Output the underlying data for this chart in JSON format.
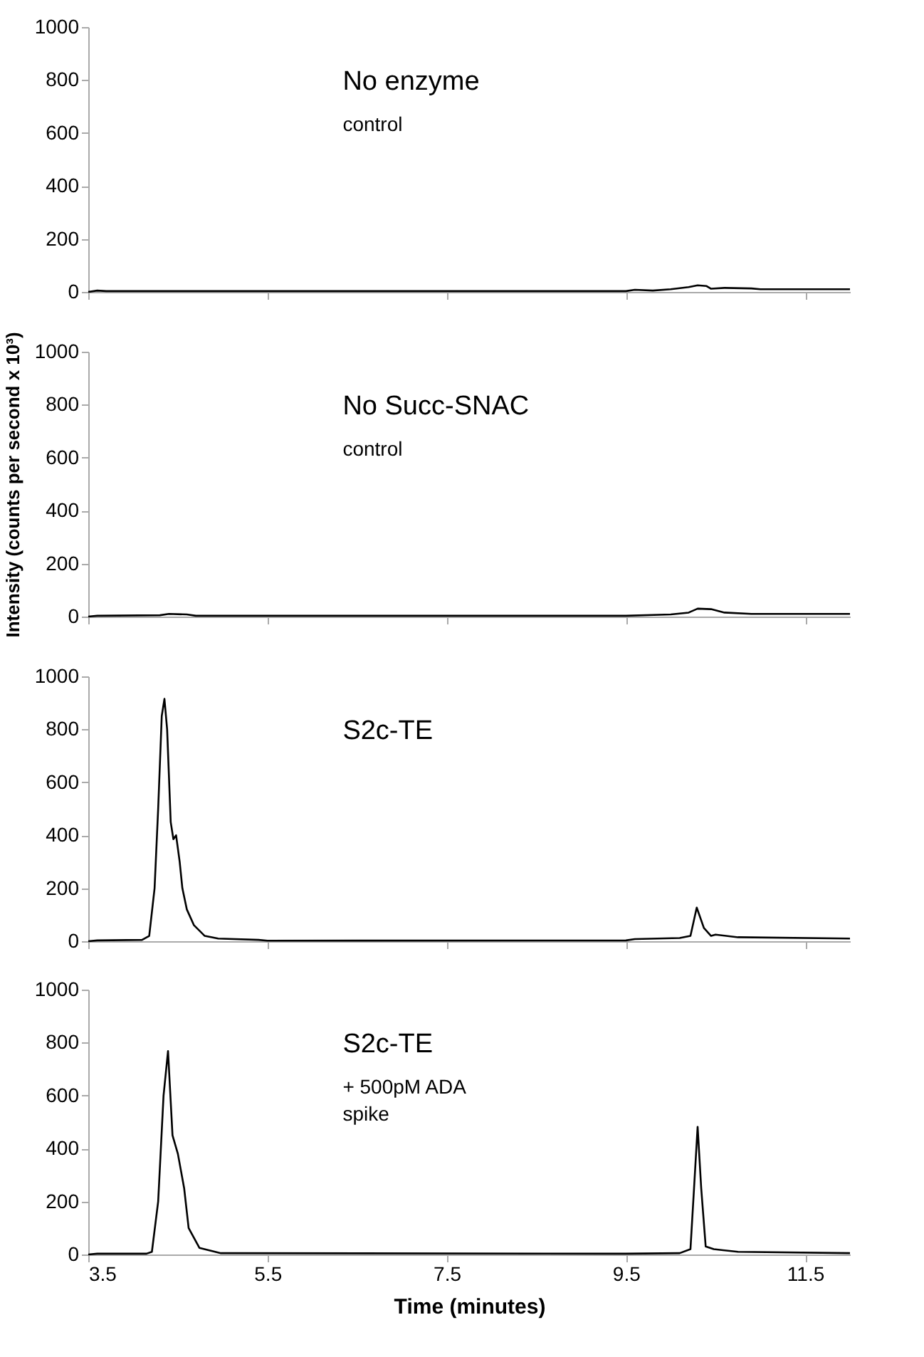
{
  "chart_data": [
    {
      "type": "line",
      "annotations": [
        "No enzyme",
        "control"
      ],
      "tick_labels": "y",
      "xlim": [
        3.5,
        12
      ],
      "xticks": [
        3.5,
        5.5,
        7.5,
        9.5,
        11.5
      ],
      "ylim": [
        0,
        1000
      ],
      "yticks": [
        0,
        200,
        400,
        600,
        800,
        1000
      ],
      "series": [
        {
          "color": "#000000",
          "x": [
            3.5,
            3.6,
            3.7,
            9.5,
            9.6,
            9.8,
            10.0,
            10.2,
            10.3,
            10.4,
            10.45,
            10.6,
            10.9,
            11.0,
            12.0
          ],
          "values": [
            0,
            5,
            3,
            3,
            8,
            5,
            10,
            18,
            25,
            22,
            12,
            15,
            13,
            10,
            10
          ]
        }
      ]
    },
    {
      "type": "line",
      "ylabel": "Intensity (counts per second x 10³)",
      "annotations": [
        "No Succ-SNAC",
        "control"
      ],
      "tick_labels": "y",
      "xlim": [
        3.5,
        12
      ],
      "xticks": [
        3.5,
        5.5,
        7.5,
        9.5,
        11.5
      ],
      "ylim": [
        0,
        1000
      ],
      "yticks": [
        0,
        200,
        400,
        600,
        800,
        1000
      ],
      "series": [
        {
          "color": "#000000",
          "x": [
            3.5,
            3.6,
            4.3,
            4.4,
            4.6,
            4.7,
            9.5,
            10.0,
            10.2,
            10.3,
            10.45,
            10.6,
            10.9,
            12.0
          ],
          "values": [
            0,
            3,
            5,
            10,
            8,
            3,
            3,
            8,
            15,
            30,
            28,
            15,
            10,
            10
          ]
        }
      ]
    },
    {
      "type": "line",
      "annotations": [
        "S2c-TE"
      ],
      "tick_labels": "y",
      "xlim": [
        3.5,
        12
      ],
      "xticks": [
        3.5,
        5.5,
        7.5,
        9.5,
        11.5
      ],
      "ylim": [
        0,
        1000
      ],
      "yticks": [
        0,
        200,
        400,
        600,
        800,
        1000
      ],
      "series": [
        {
          "color": "#000000",
          "x": [
            3.5,
            3.6,
            4.1,
            4.18,
            4.24,
            4.28,
            4.32,
            4.35,
            4.38,
            4.42,
            4.45,
            4.48,
            4.52,
            4.55,
            4.6,
            4.68,
            4.8,
            4.95,
            5.4,
            5.5,
            9.5,
            9.6,
            10.1,
            10.22,
            10.29,
            10.37,
            10.45,
            10.5,
            10.75,
            12.0
          ],
          "values": [
            0,
            3,
            5,
            20,
            200,
            500,
            850,
            915,
            800,
            450,
            385,
            400,
            300,
            200,
            120,
            60,
            20,
            10,
            5,
            2,
            3,
            8,
            12,
            20,
            127,
            50,
            20,
            25,
            15,
            10
          ]
        }
      ]
    },
    {
      "type": "line",
      "xlabel": "Time (minutes)",
      "annotations": [
        "S2c-TE",
        "+ 500pM ADA",
        "spike"
      ],
      "xlim": [
        3.5,
        12
      ],
      "xticks": [
        3.5,
        5.5,
        7.5,
        9.5,
        11.5
      ],
      "ylim": [
        0,
        1000
      ],
      "yticks": [
        0,
        200,
        400,
        600,
        800,
        1000
      ],
      "series": [
        {
          "color": "#000000",
          "x": [
            3.5,
            3.6,
            4.15,
            4.21,
            4.28,
            4.34,
            4.39,
            4.44,
            4.5,
            4.57,
            4.62,
            4.74,
            4.98,
            9.5,
            10.1,
            10.22,
            10.26,
            10.3,
            10.34,
            10.39,
            10.48,
            10.75,
            12.0
          ],
          "values": [
            0,
            3,
            3,
            10,
            200,
            600,
            768,
            450,
            380,
            250,
            100,
            25,
            5,
            3,
            5,
            20,
            250,
            482,
            250,
            30,
            20,
            10,
            5
          ]
        }
      ]
    }
  ]
}
